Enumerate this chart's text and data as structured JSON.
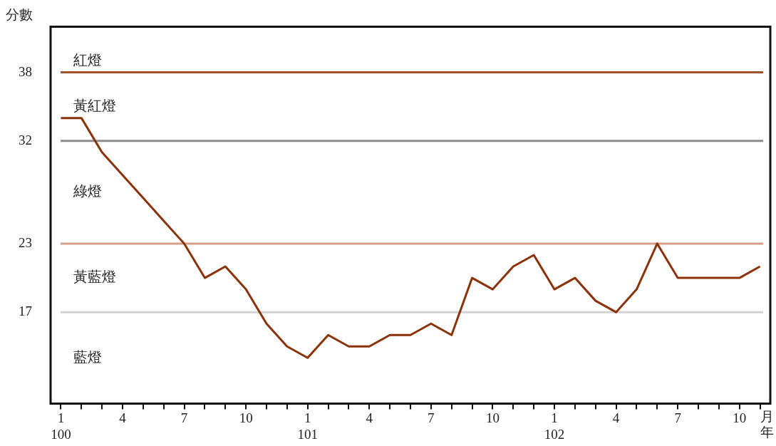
{
  "chart_data": {
    "type": "line",
    "xlabel": "月年",
    "ylabel": "分數",
    "categories": [
      "1\n100",
      null,
      null,
      "4",
      null,
      null,
      "7",
      null,
      null,
      "10",
      null,
      null,
      "1\n101",
      null,
      null,
      "4",
      null,
      null,
      "7",
      null,
      null,
      "10",
      null,
      null,
      "1\n102",
      null,
      null,
      "4",
      null,
      null,
      "7",
      null,
      null,
      "10",
      null
    ],
    "series": [
      {
        "color": "#8b3208",
        "values": [
          34,
          34,
          31,
          29,
          27,
          25,
          23,
          20,
          21,
          19,
          16,
          14,
          13,
          15,
          14,
          14,
          15,
          15,
          16,
          15,
          20,
          19,
          21,
          22,
          19,
          20,
          18,
          17,
          19,
          23,
          20,
          20,
          20,
          20,
          21
        ]
      }
    ],
    "ylim": [
      9,
      42
    ],
    "yticks": [
      17,
      23,
      32,
      38
    ],
    "grid": false,
    "legend": false,
    "marker": "none",
    "line_style": "solid",
    "ref_lines": [
      {
        "axis": "y",
        "value": 38,
        "color": "#a0522d"
      },
      {
        "axis": "y",
        "value": 32,
        "color": "#8c8c8c"
      },
      {
        "axis": "y",
        "value": 23,
        "color": "#d4a088"
      },
      {
        "axis": "y",
        "value": 17,
        "color": "#d3d3d3"
      }
    ],
    "annotations": [
      "紅燈",
      "黃紅燈",
      "綠燈",
      "黃藍燈",
      "藍燈"
    ]
  }
}
